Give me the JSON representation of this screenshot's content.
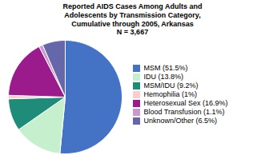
{
  "chart_data": {
    "type": "pie",
    "title": "Reported AIDS Cases Among Adults and\nAdolescents by Transmission Category,\nCumulative through 2005, Arkansas\nN = 3,667",
    "categories": [
      "MSM (51.5%)",
      "IDU (13.8%)",
      "MSM/IDU (9.2%)",
      "Hemophilia (1%)",
      "Heterosexual Sex (16.9%)",
      "Blood Transfusion (1.1%)",
      "Unknown/Other (6.5%)"
    ],
    "values": [
      51.5,
      13.8,
      9.2,
      1.0,
      16.9,
      1.1,
      6.5
    ],
    "colors": [
      "#4472C4",
      "#C6EFCE",
      "#1F8C7A",
      "#FFCCCC",
      "#9B1A8C",
      "#CC99CC",
      "#6666AA"
    ],
    "legend": "right"
  }
}
